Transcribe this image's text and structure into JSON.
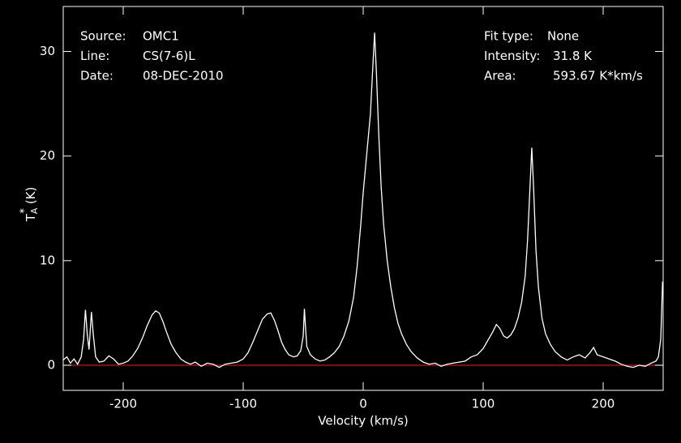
{
  "chart_data": {
    "type": "line",
    "info_left": [
      {
        "label": "Source:",
        "value": "OMC1"
      },
      {
        "label": "Line:",
        "value": "CS(7-6)L"
      },
      {
        "label": "Date:",
        "value": "08-DEC-2010"
      }
    ],
    "info_right": [
      {
        "label": "Fit type:",
        "value": "None"
      },
      {
        "label": "Intensity:",
        "value": "31.8 K"
      },
      {
        "label": "Area:",
        "value": "593.67 K*km/s"
      }
    ],
    "xlabel": "Velocity (km/s)",
    "ylabel": {
      "main": "T",
      "sub": "A",
      "sup": "*",
      "unit": "(K)"
    },
    "color": "#ffffff",
    "baseline": 0,
    "baseline_color": "#d01010",
    "xlim": [
      -250,
      250
    ],
    "ylim": [
      -2.4,
      34.3
    ],
    "xticks": [
      -200,
      -100,
      0,
      100,
      200
    ],
    "yticks": [
      0,
      10,
      20,
      30
    ],
    "x": [
      -250,
      -247,
      -244,
      -241,
      -238,
      -235,
      -233,
      -231.5,
      -230,
      -228.5,
      -226.5,
      -225,
      -223,
      -220,
      -216,
      -212,
      -208,
      -204,
      -200,
      -196,
      -192,
      -188,
      -184,
      -180,
      -176,
      -173,
      -170,
      -167,
      -164,
      -160,
      -156,
      -152,
      -148,
      -144,
      -140,
      -135,
      -130,
      -125,
      -120,
      -115,
      -110,
      -105,
      -100,
      -96,
      -92,
      -88,
      -84,
      -80,
      -77,
      -74,
      -71,
      -68,
      -65,
      -62,
      -58,
      -55,
      -52,
      -50,
      -49,
      -48,
      -47,
      -44,
      -40,
      -36,
      -32,
      -28,
      -24,
      -20,
      -16,
      -12,
      -8,
      -5,
      -2,
      0,
      2,
      4,
      6,
      8,
      9.5,
      11,
      13,
      15,
      17,
      20,
      23,
      26,
      29,
      32,
      36,
      40,
      45,
      50,
      55,
      60,
      65,
      70,
      75,
      80,
      85,
      90,
      95,
      100,
      104,
      108,
      111,
      114,
      117,
      120,
      123,
      126,
      129,
      132,
      135,
      137,
      139,
      140.5,
      142,
      144,
      146,
      149,
      152,
      156,
      160,
      165,
      170,
      175,
      180,
      185,
      189,
      192,
      195,
      200,
      205,
      210,
      215,
      220,
      225,
      230,
      235,
      240,
      244,
      246,
      248,
      249.5
    ],
    "values": [
      0.5,
      0.8,
      0.2,
      0.6,
      0.1,
      0.8,
      2.5,
      5.3,
      3,
      1.5,
      5.1,
      3,
      0.8,
      0.3,
      0.4,
      0.9,
      0.6,
      0.1,
      0.2,
      0.4,
      0.9,
      1.6,
      2.6,
      3.8,
      4.8,
      5.2,
      5.0,
      4.2,
      3.2,
      2.0,
      1.2,
      0.6,
      0.3,
      0.1,
      0.3,
      -0.1,
      0.2,
      0.1,
      -0.2,
      0.1,
      0.2,
      0.3,
      0.6,
      1.2,
      2.2,
      3.3,
      4.4,
      4.9,
      5.0,
      4.3,
      3.3,
      2.2,
      1.5,
      1.0,
      0.8,
      0.9,
      1.4,
      2.8,
      5.4,
      3.5,
      1.8,
      1.0,
      0.6,
      0.4,
      0.5,
      0.8,
      1.2,
      1.8,
      2.8,
      4.2,
      6.5,
      9.5,
      13.5,
      16.5,
      19,
      21.5,
      24,
      28.5,
      31.8,
      28,
      22,
      17,
      13.5,
      10,
      7.5,
      5.5,
      4,
      3,
      2,
      1.3,
      0.7,
      0.3,
      0.1,
      0.2,
      -0.1,
      0.1,
      0.2,
      0.3,
      0.4,
      0.8,
      1.0,
      1.6,
      2.4,
      3.2,
      3.9,
      3.5,
      2.8,
      2.6,
      2.9,
      3.5,
      4.5,
      6,
      8.5,
      12,
      17,
      20.8,
      17,
      11,
      7.5,
      4.5,
      3,
      2,
      1.3,
      0.8,
      0.5,
      0.8,
      1.0,
      0.7,
      1.2,
      1.7,
      1.0,
      0.8,
      0.6,
      0.4,
      0.1,
      -0.1,
      -0.2,
      0.0,
      -0.1,
      0.2,
      0.4,
      0.8,
      2.5,
      8
    ]
  }
}
